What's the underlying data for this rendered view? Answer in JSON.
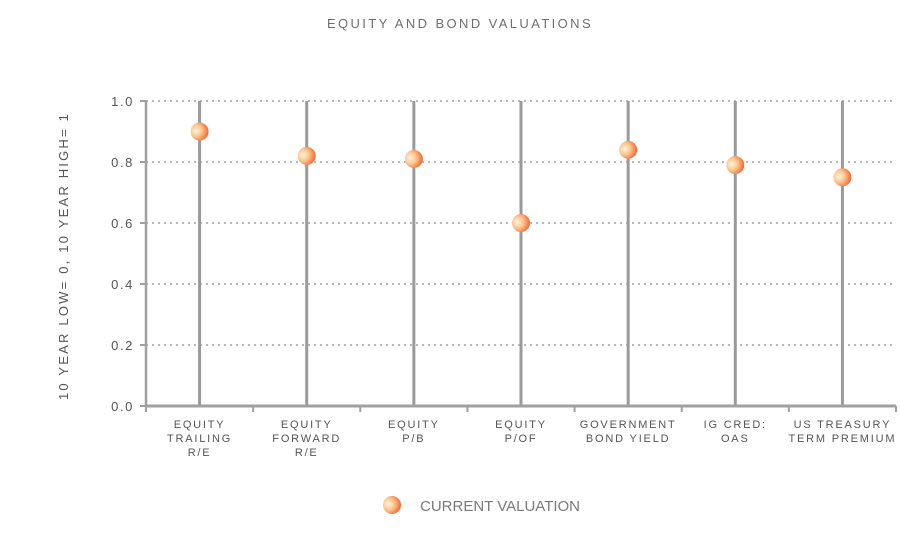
{
  "chart_data": {
    "type": "scatter",
    "title": "EQUITY AND BOND VALUATIONS",
    "ylabel": "10 YEAR LOW= 0,   10 YEAR HIGH= 1",
    "xlabel": "",
    "ylim": [
      0,
      1
    ],
    "yticks": [
      "0.0",
      "0.2",
      "0.4",
      "0.6",
      "0.8",
      "1.0"
    ],
    "grid": true,
    "legend_position": "bottom-center",
    "categories": [
      [
        "EQUITY",
        "TRAILING",
        "R/E"
      ],
      [
        "EQUITY",
        "FORWARD",
        "R/E"
      ],
      [
        "EQUITY",
        "P/B"
      ],
      [
        "EQUITY",
        "P/OF"
      ],
      [
        "GOVERNMENT",
        "BOND YIELD"
      ],
      [
        "IG CRED:",
        "OAS"
      ],
      [
        "US TREASURY",
        "TERM PREMIUM"
      ]
    ],
    "series": [
      {
        "name": "CURRENT VALUATION",
        "values": [
          0.9,
          0.82,
          0.81,
          0.6,
          0.84,
          0.79,
          0.75
        ]
      }
    ],
    "colors": {
      "marker_light": "#fde7c4",
      "marker_dark": "#f26a2e",
      "stem": "#9a9a9a",
      "grid": "#b8b8b8",
      "axis": "#a0a0a0"
    }
  }
}
